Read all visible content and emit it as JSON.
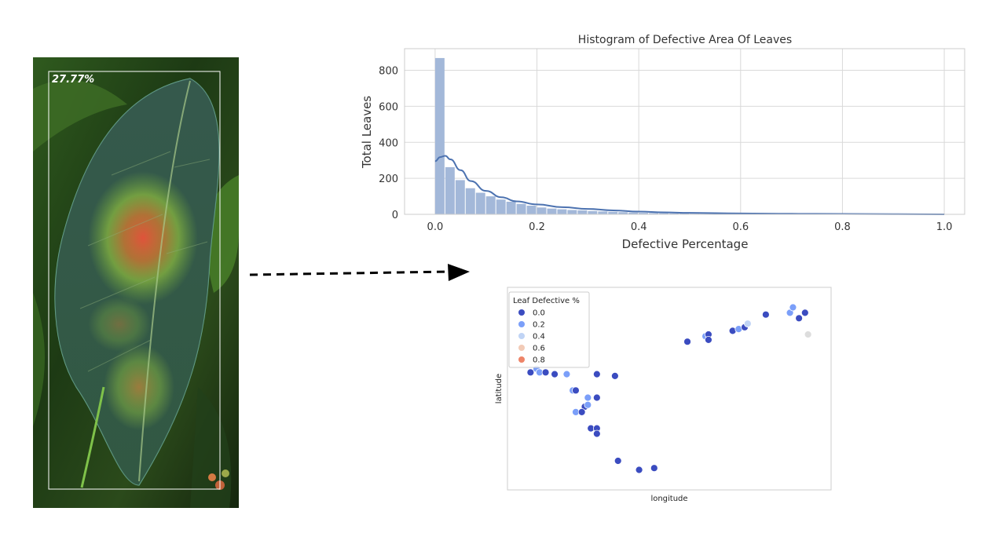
{
  "leaf_image": {
    "overlay_label": "27.77%"
  },
  "colors": {
    "histogram_bar": "#a3b8d9",
    "kde_line": "#4c72b0",
    "grid": "#d9d9d9",
    "legend_levels": [
      "#3b4cc0",
      "#7b9ff9",
      "#c0d4f5",
      "#f2cbb7",
      "#ee8468"
    ]
  },
  "chart_data": [
    {
      "type": "bar",
      "title": "Histogram of Defective Area Of Leaves",
      "xlabel": "Defective Percentage",
      "ylabel": "Total Leaves",
      "xlim": [
        -0.06,
        1.04
      ],
      "ylim": [
        0,
        920
      ],
      "xticks": [
        "0.0",
        "0.2",
        "0.4",
        "0.6",
        "0.8",
        "1.0"
      ],
      "yticks": [
        "0",
        "200",
        "400",
        "600",
        "800"
      ],
      "grid": true,
      "bin_width": 0.02,
      "bin_starts": [
        0.0,
        0.02,
        0.04,
        0.06,
        0.08,
        0.1,
        0.12,
        0.14,
        0.16,
        0.18,
        0.2,
        0.22,
        0.24,
        0.26,
        0.28,
        0.3,
        0.32,
        0.34,
        0.36,
        0.38,
        0.4,
        0.42,
        0.44,
        0.46,
        0.48,
        0.5
      ],
      "values": [
        868,
        262,
        190,
        145,
        120,
        100,
        82,
        70,
        58,
        48,
        38,
        32,
        28,
        24,
        22,
        18,
        16,
        14,
        12,
        10,
        8,
        7,
        6,
        5,
        4,
        3
      ],
      "kde": {
        "x": [
          0.0,
          0.01,
          0.02,
          0.03,
          0.05,
          0.07,
          0.1,
          0.13,
          0.16,
          0.2,
          0.25,
          0.3,
          0.35,
          0.4,
          0.45,
          0.5,
          0.6,
          0.7,
          0.8,
          0.9,
          1.0
        ],
        "y": [
          295,
          318,
          325,
          305,
          245,
          185,
          130,
          95,
          72,
          55,
          40,
          30,
          22,
          15,
          11,
          8,
          5,
          3,
          2,
          1,
          0
        ]
      }
    },
    {
      "type": "scatter",
      "xlabel": "longitude",
      "ylabel": "latitude",
      "legend_title": "Leaf Defective %",
      "legend_entries": [
        "0.0",
        "0.2",
        "0.4",
        "0.6",
        "0.8"
      ],
      "legend_position": "top-left",
      "points": [
        {
          "x": 0.04,
          "y": 0.59,
          "v": 0.0
        },
        {
          "x": 0.06,
          "y": 0.61,
          "v": 0.1
        },
        {
          "x": 0.07,
          "y": 0.59,
          "v": 0.2
        },
        {
          "x": 0.09,
          "y": 0.59,
          "v": 0.0
        },
        {
          "x": 0.12,
          "y": 0.58,
          "v": 0.0
        },
        {
          "x": 0.16,
          "y": 0.58,
          "v": 0.3
        },
        {
          "x": 0.26,
          "y": 0.58,
          "v": 0.0
        },
        {
          "x": 0.32,
          "y": 0.57,
          "v": 0.0
        },
        {
          "x": 0.18,
          "y": 0.49,
          "v": 0.3
        },
        {
          "x": 0.19,
          "y": 0.49,
          "v": 0.0
        },
        {
          "x": 0.23,
          "y": 0.45,
          "v": 0.2
        },
        {
          "x": 0.26,
          "y": 0.45,
          "v": 0.0
        },
        {
          "x": 0.22,
          "y": 0.4,
          "v": 0.0
        },
        {
          "x": 0.23,
          "y": 0.41,
          "v": 0.3
        },
        {
          "x": 0.19,
          "y": 0.37,
          "v": 0.1
        },
        {
          "x": 0.21,
          "y": 0.37,
          "v": 0.0
        },
        {
          "x": 0.24,
          "y": 0.28,
          "v": 0.0
        },
        {
          "x": 0.26,
          "y": 0.28,
          "v": 0.0
        },
        {
          "x": 0.26,
          "y": 0.25,
          "v": 0.0
        },
        {
          "x": 0.33,
          "y": 0.1,
          "v": 0.0
        },
        {
          "x": 0.4,
          "y": 0.05,
          "v": 0.0
        },
        {
          "x": 0.45,
          "y": 0.06,
          "v": 0.0
        },
        {
          "x": 0.56,
          "y": 0.76,
          "v": 0.0
        },
        {
          "x": 0.62,
          "y": 0.79,
          "v": 0.2
        },
        {
          "x": 0.63,
          "y": 0.8,
          "v": 0.0
        },
        {
          "x": 0.63,
          "y": 0.77,
          "v": 0.0
        },
        {
          "x": 0.71,
          "y": 0.82,
          "v": 0.0
        },
        {
          "x": 0.73,
          "y": 0.83,
          "v": 0.3
        },
        {
          "x": 0.75,
          "y": 0.84,
          "v": 0.0
        },
        {
          "x": 0.76,
          "y": 0.86,
          "v": 0.4
        },
        {
          "x": 0.82,
          "y": 0.91,
          "v": 0.0
        },
        {
          "x": 0.9,
          "y": 0.92,
          "v": 0.2
        },
        {
          "x": 0.91,
          "y": 0.95,
          "v": 0.3
        },
        {
          "x": 0.93,
          "y": 0.89,
          "v": 0.0
        },
        {
          "x": 0.95,
          "y": 0.92,
          "v": 0.0
        },
        {
          "x": 0.96,
          "y": 0.8,
          "v": 0.5
        }
      ]
    }
  ]
}
